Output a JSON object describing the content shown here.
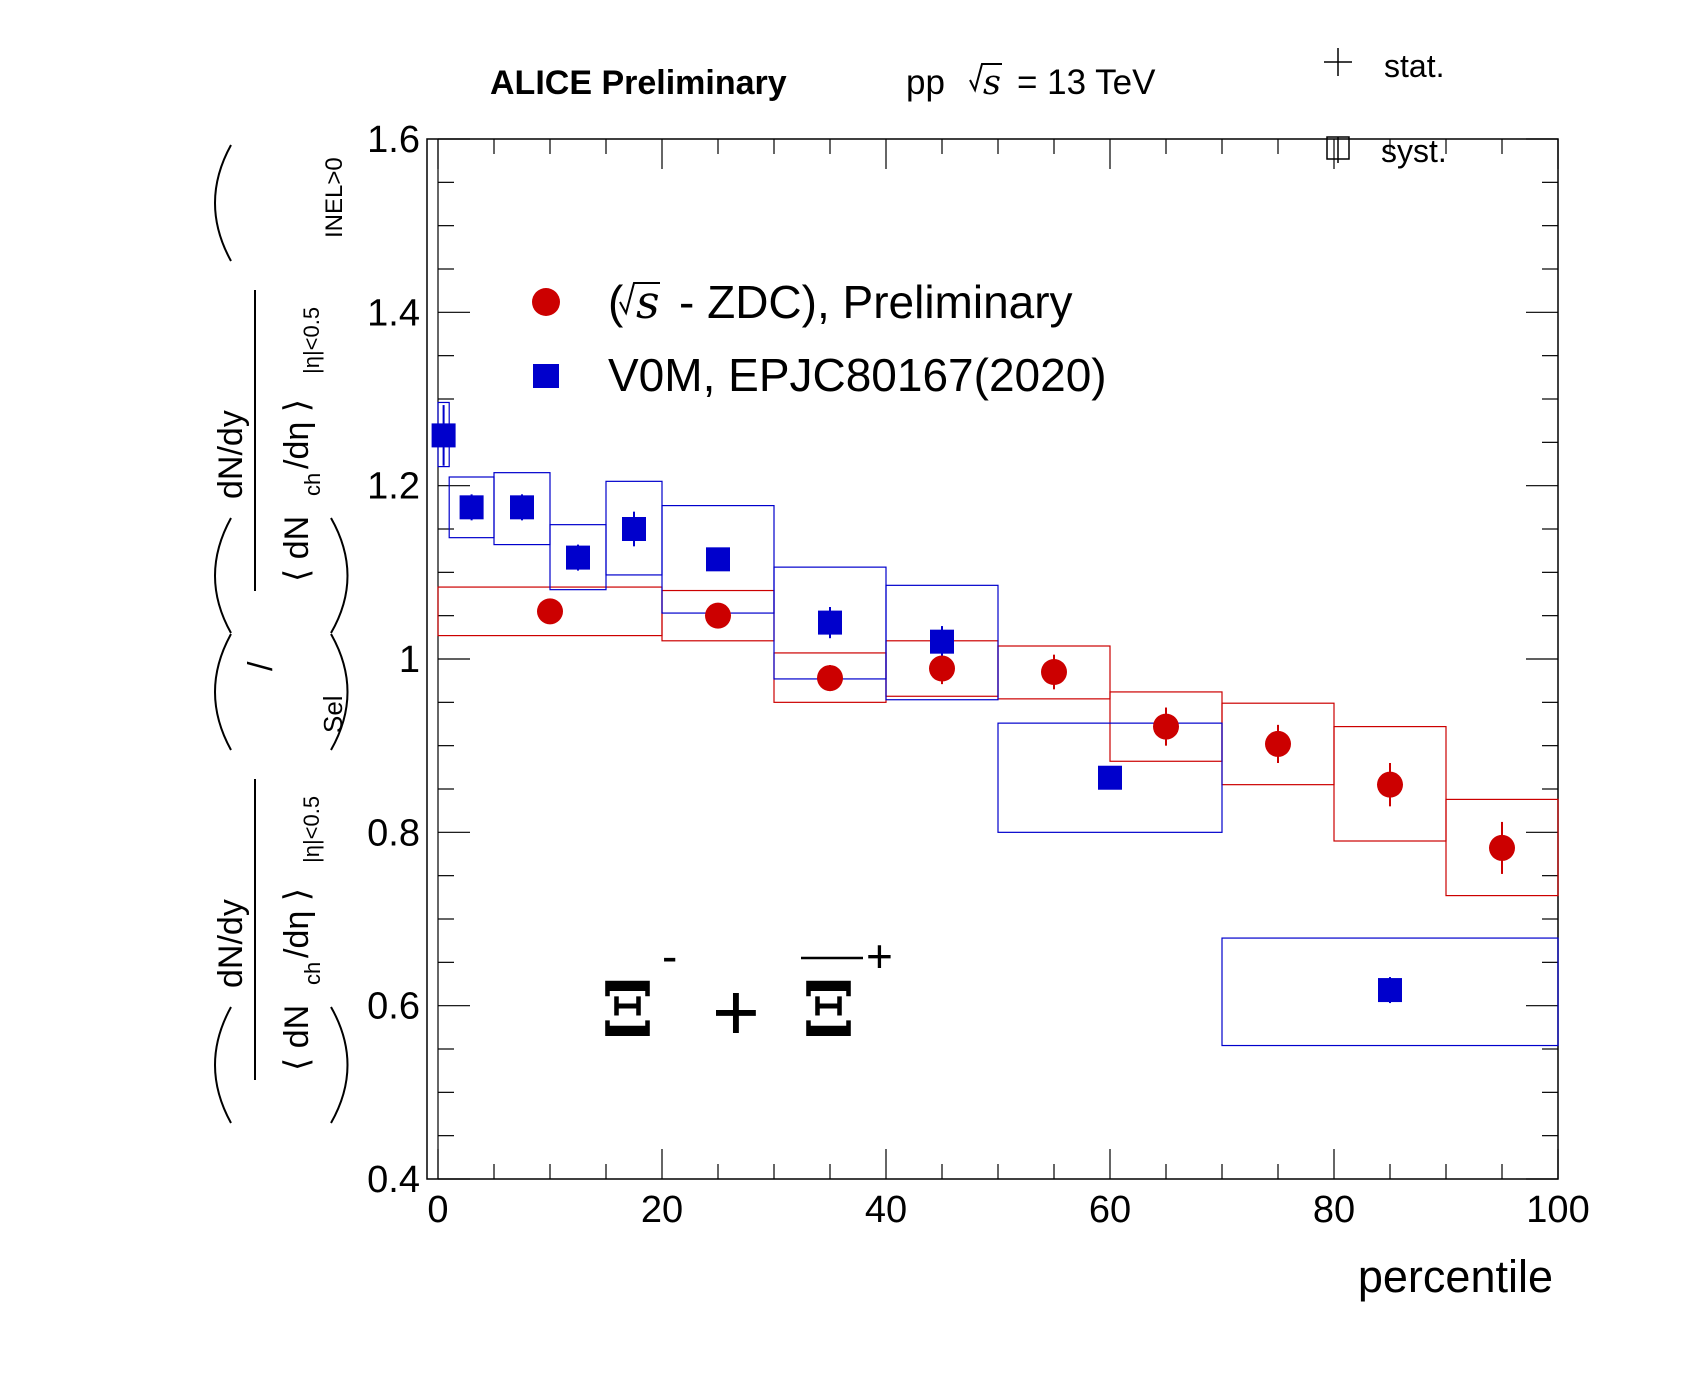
{
  "header": {
    "experiment": "ALICE Preliminary",
    "system_prefix": "pp",
    "system_sqrt": "s",
    "system_energy": "= 13 TeV"
  },
  "uncertainty_legend": {
    "stat_label": "stat.",
    "syst_label": "syst."
  },
  "legend": {
    "zdc_open": "(",
    "zdc_sqrt": "s",
    "zdc_rest": "- ZDC), Preliminary",
    "v0m": "V0M, EPJC80167(2020)"
  },
  "particle": {
    "xi": "Ξ",
    "minus": "-",
    "plus_sign": "+",
    "anti_plus": "+"
  },
  "y_axis": {
    "num1": "dN/dy",
    "den1_main": "⟨ dN",
    "den1_sub": "ch",
    "den1_tail": "/dη ⟩",
    "den1_eta": "|η|<0.5",
    "sub1": "Sel",
    "slash": "/",
    "num2": "dN/dy",
    "den2_main": "⟨ dN",
    "den2_sub": "ch",
    "den2_tail": "/dη ⟩",
    "den2_eta": "|η|<0.5",
    "sub2": "INEL>0"
  },
  "chart_data": {
    "type": "scatter",
    "xlabel": "percentile",
    "xlim": [
      0,
      100
    ],
    "ylim": [
      0.4,
      1.6
    ],
    "x_ticks": [
      0,
      20,
      40,
      60,
      80,
      100
    ],
    "y_ticks": [
      0.4,
      0.6,
      0.8,
      1,
      1.2,
      1.4,
      1.6
    ],
    "x_tick_labels": [
      "0",
      "20",
      "40",
      "60",
      "80",
      "100"
    ],
    "y_tick_labels": [
      "0.4",
      "0.6",
      "0.8",
      "1",
      "1.2",
      "1.4",
      "1.6"
    ],
    "series": [
      {
        "name": "(√s - ZDC), Preliminary",
        "color": "#cc0000",
        "marker": "circle",
        "points": [
          {
            "x": 10,
            "y": 1.055,
            "stat": 0.006,
            "syst_lo": 1.027,
            "syst_hi": 1.083,
            "xmin": 0,
            "xmax": 20
          },
          {
            "x": 25,
            "y": 1.05,
            "stat": 0.01,
            "syst_lo": 1.021,
            "syst_hi": 1.079,
            "xmin": 20,
            "xmax": 30
          },
          {
            "x": 35,
            "y": 0.978,
            "stat": 0.015,
            "syst_lo": 0.95,
            "syst_hi": 1.007,
            "xmin": 30,
            "xmax": 40
          },
          {
            "x": 45,
            "y": 0.989,
            "stat": 0.018,
            "syst_lo": 0.957,
            "syst_hi": 1.021,
            "xmin": 40,
            "xmax": 50
          },
          {
            "x": 55,
            "y": 0.985,
            "stat": 0.02,
            "syst_lo": 0.954,
            "syst_hi": 1.015,
            "xmin": 50,
            "xmax": 60
          },
          {
            "x": 65,
            "y": 0.922,
            "stat": 0.022,
            "syst_lo": 0.882,
            "syst_hi": 0.962,
            "xmin": 60,
            "xmax": 70
          },
          {
            "x": 75,
            "y": 0.902,
            "stat": 0.022,
            "syst_lo": 0.855,
            "syst_hi": 0.949,
            "xmin": 70,
            "xmax": 80
          },
          {
            "x": 85,
            "y": 0.855,
            "stat": 0.025,
            "syst_lo": 0.79,
            "syst_hi": 0.922,
            "xmin": 80,
            "xmax": 90
          },
          {
            "x": 95,
            "y": 0.782,
            "stat": 0.03,
            "syst_lo": 0.727,
            "syst_hi": 0.838,
            "xmin": 90,
            "xmax": 100
          }
        ]
      },
      {
        "name": "V0M, EPJC80167(2020)",
        "color": "#0000cc",
        "marker": "square",
        "points": [
          {
            "x": 0.5,
            "y": 1.258,
            "stat": 0.035,
            "syst_lo": 1.222,
            "syst_hi": 1.296,
            "xmin": 0,
            "xmax": 1
          },
          {
            "x": 3,
            "y": 1.175,
            "stat": 0.015,
            "syst_lo": 1.14,
            "syst_hi": 1.21,
            "xmin": 1,
            "xmax": 5
          },
          {
            "x": 7.5,
            "y": 1.175,
            "stat": 0.015,
            "syst_lo": 1.132,
            "syst_hi": 1.215,
            "xmin": 5,
            "xmax": 10
          },
          {
            "x": 12.5,
            "y": 1.117,
            "stat": 0.015,
            "syst_lo": 1.08,
            "syst_hi": 1.155,
            "xmin": 10,
            "xmax": 15
          },
          {
            "x": 17.5,
            "y": 1.15,
            "stat": 0.02,
            "syst_lo": 1.097,
            "syst_hi": 1.205,
            "xmin": 15,
            "xmax": 20
          },
          {
            "x": 25,
            "y": 1.115,
            "stat": 0.012,
            "syst_lo": 1.053,
            "syst_hi": 1.177,
            "xmin": 20,
            "xmax": 30
          },
          {
            "x": 35,
            "y": 1.042,
            "stat": 0.018,
            "syst_lo": 0.977,
            "syst_hi": 1.106,
            "xmin": 30,
            "xmax": 40
          },
          {
            "x": 45,
            "y": 1.02,
            "stat": 0.018,
            "syst_lo": 0.953,
            "syst_hi": 1.085,
            "xmin": 40,
            "xmax": 50
          },
          {
            "x": 60,
            "y": 0.863,
            "stat": 0.01,
            "syst_lo": 0.8,
            "syst_hi": 0.926,
            "xmin": 50,
            "xmax": 70
          },
          {
            "x": 85,
            "y": 0.618,
            "stat": 0.015,
            "syst_lo": 0.554,
            "syst_hi": 0.678,
            "xmin": 70,
            "xmax": 100
          }
        ]
      }
    ]
  }
}
